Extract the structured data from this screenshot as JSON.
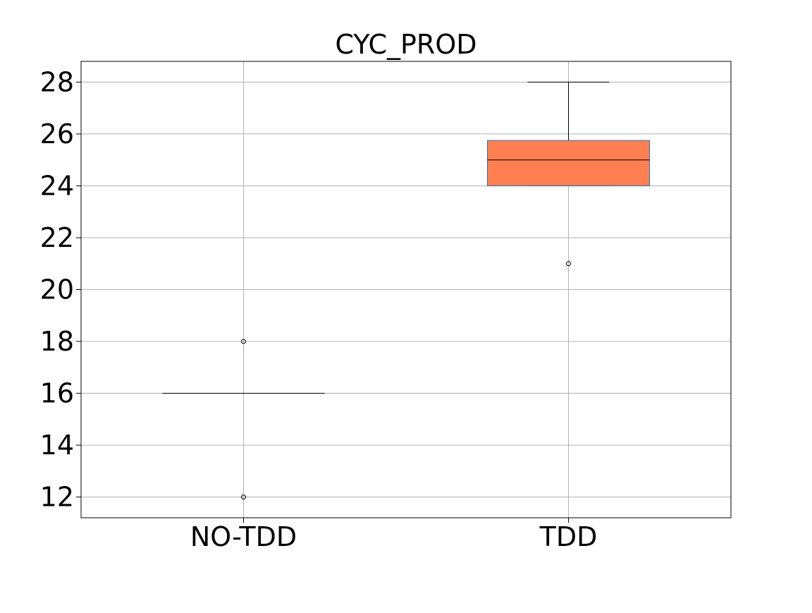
{
  "chart_data": {
    "type": "box",
    "title": "CYC_PROD",
    "xlabel": "",
    "ylabel": "",
    "categories": [
      "NO-TDD",
      "TDD"
    ],
    "ylim": [
      11.2,
      28.8
    ],
    "yticks": [
      12,
      14,
      16,
      18,
      20,
      22,
      24,
      26,
      28
    ],
    "grid": true,
    "boxes": [
      {
        "category": "NO-TDD",
        "min": 16,
        "q1": 16,
        "median": 16,
        "q3": 16,
        "max": 16,
        "outliers": [
          18,
          12
        ],
        "fill": "none"
      },
      {
        "category": "TDD",
        "min": 24,
        "q1": 24,
        "median": 25,
        "q3": 25.75,
        "max": 28,
        "outliers": [
          21
        ],
        "fill": "#ff7f50"
      }
    ],
    "colors": {
      "box_edge": "#1f77b4",
      "box_fill": "#ff7f50",
      "lines": "#000000",
      "grid": "#b0b0b0"
    }
  }
}
